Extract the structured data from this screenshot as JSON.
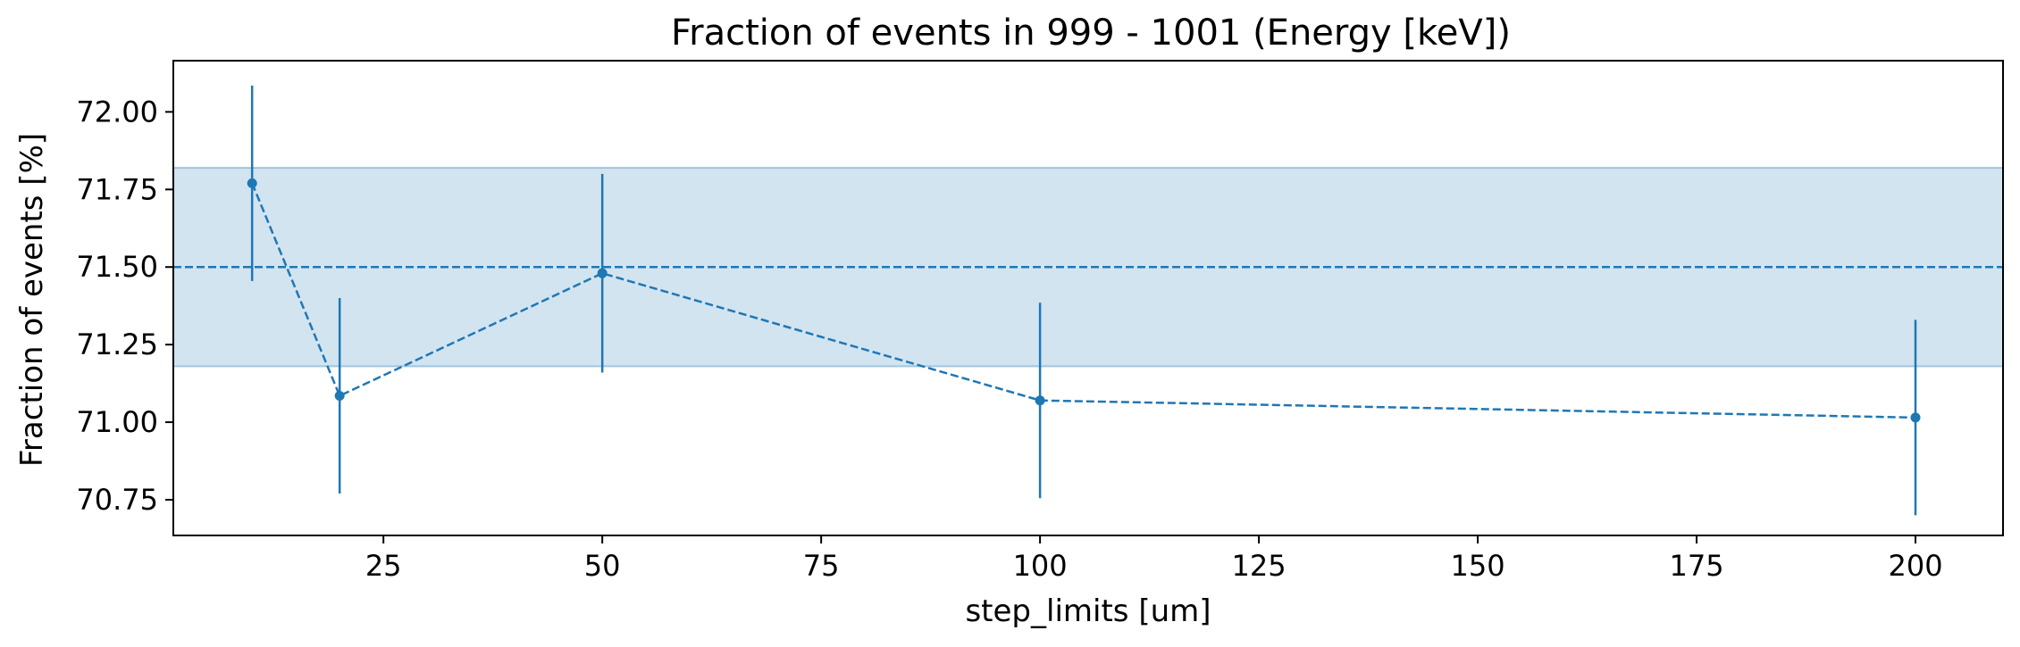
{
  "chart_data": {
    "type": "line",
    "title": "Fraction of events in 999 - 1001 (Energy [keV])",
    "xlabel": "step_limits [um]",
    "ylabel": "Fraction of events [%]",
    "xlim": [
      1,
      210
    ],
    "ylim": [
      70.635,
      72.165
    ],
    "xticks": [
      25,
      50,
      75,
      100,
      125,
      150,
      175,
      200
    ],
    "xtick_labels": [
      "25",
      "50",
      "75",
      "100",
      "125",
      "150",
      "175",
      "200"
    ],
    "yticks": [
      70.75,
      71.0,
      71.25,
      71.5,
      71.75,
      72.0
    ],
    "ytick_labels": [
      "70.75",
      "71.00",
      "71.25",
      "71.50",
      "71.75",
      "72.00"
    ],
    "grid": false,
    "series": [
      {
        "x": [
          10,
          20,
          50,
          100,
          200
        ],
        "y": [
          71.77,
          71.085,
          71.48,
          71.07,
          71.015
        ],
        "yerr": [
          0.315,
          0.315,
          0.32,
          0.315,
          0.315
        ],
        "color": "#1f77b4",
        "linestyle": "dashed",
        "marker": "circle"
      }
    ],
    "reference_line": {
      "y": 71.5,
      "color": "#1f77b4",
      "linestyle": "dashed"
    },
    "band": {
      "y_low": 71.18,
      "y_high": 71.82,
      "color": "#1f77b4",
      "opacity": 0.2
    }
  }
}
